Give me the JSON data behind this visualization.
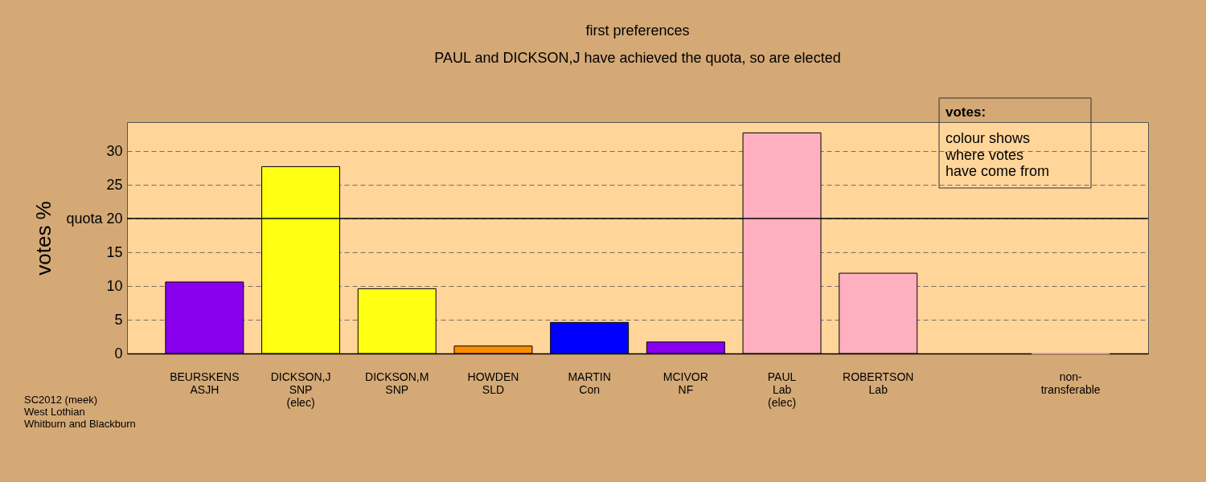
{
  "chart_data": {
    "type": "bar",
    "title": "first preferences",
    "subtitle": "PAUL and DICKSON,J have achieved the quota, so are elected",
    "ylabel": "votes %",
    "categories": [
      "BEURSKENS\nASJH",
      "DICKSON,J\nSNP\n(elec)",
      "DICKSON,M\nSNP",
      "HOWDEN\nSLD",
      "MARTIN\nCon",
      "MCIVOR\nNF",
      "PAUL\nLab\n(elec)",
      "ROBERTSON\nLab",
      null,
      "non-\ntransferable"
    ],
    "values": [
      10.6,
      27.7,
      9.6,
      1.1,
      4.6,
      1.7,
      32.7,
      11.9,
      null,
      0
    ],
    "colors": [
      "#8800ee",
      "#ffff11",
      "#ffff11",
      "#ff8c00",
      "#0000ff",
      "#8800ee",
      "#ffb0c0",
      "#ffb0c0",
      "#ffb0c0",
      "#ffb0c0"
    ],
    "ylim": [
      0,
      34.3
    ],
    "yticks": [
      0,
      5,
      10,
      15,
      {
        "value": 20,
        "label": "quota 20"
      },
      25,
      30
    ],
    "ref_lines": [
      {
        "axis": "y",
        "value": 20,
        "color": "#000000",
        "line_style": "solid"
      }
    ],
    "annotations": [
      "votes:",
      "colour shows\nwhere votes\nhave come from",
      "SC2012 (meek)\nWest Lothian\nWhitburn and Blackburn"
    ],
    "grid": "y"
  }
}
